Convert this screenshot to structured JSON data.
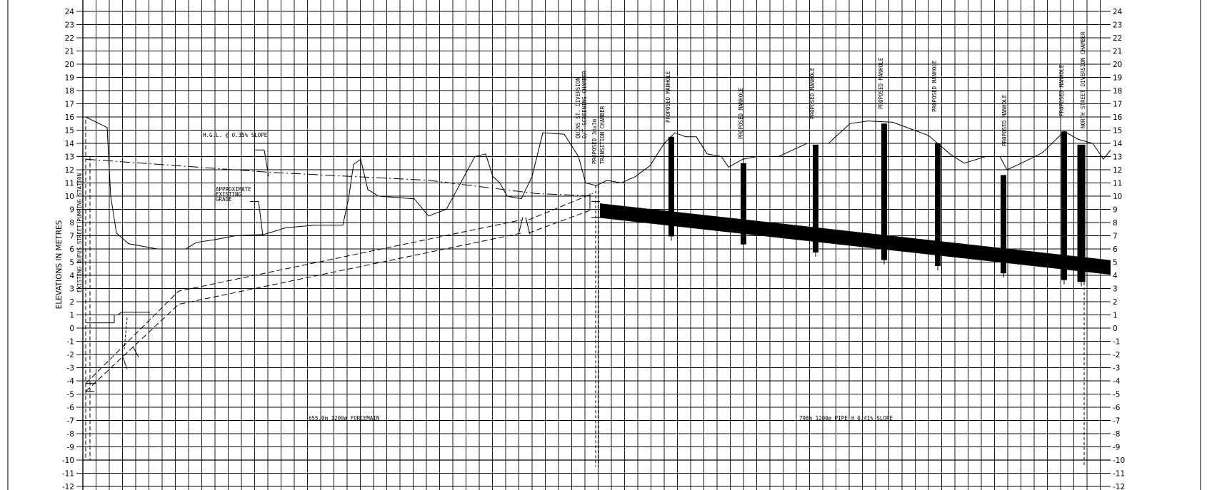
{
  "y_axis": {
    "title": "ELEVATIONS IN METRES",
    "ticks": [
      "24",
      "23",
      "22",
      "21",
      "20",
      "19",
      "18",
      "17",
      "16",
      "15",
      "14",
      "13",
      "12",
      "11",
      "10",
      "9",
      "8",
      "7",
      "6",
      "5",
      "4",
      "3",
      "2",
      "1",
      "0",
      "-1",
      "-2",
      "-3",
      "-4",
      "-5",
      "-6",
      "-7",
      "-8",
      "-9",
      "-10",
      "-11",
      "-12"
    ],
    "right_ticks": [
      "24",
      "23",
      "22",
      "21",
      "20",
      "19",
      "18",
      "17",
      "16",
      "15",
      "14",
      "13",
      "12",
      "11",
      "10",
      "9",
      "8",
      "7",
      "6",
      "5",
      "4",
      "3",
      "2",
      "1",
      "0",
      "-1",
      "-2",
      "-3",
      "-4",
      "-5",
      "-6",
      "-7",
      "-8",
      "-9",
      "-10",
      "-11",
      "-12"
    ]
  },
  "labels": {
    "pumping_station": "EXISTING DUFUS STREET PUMPING STATION",
    "hgl": "H.G.L. @ 0.35% SLOPE",
    "grade_1": "APPROXIMATE",
    "grade_2": "EXISTING",
    "grade_3": "GRADE",
    "diversion_1": "QUINS ST. DIVERSION",
    "diversion_2": "D/T SCREENING CHAMBER",
    "transition_1": "PROPOSED 3mx3m",
    "transition_2": "TRANSITION CHAMBER",
    "manhole_1": "PROPOSED MANHOLE",
    "manhole_2": "PROPOSED MANHOLE",
    "manhole_3": "PROPOSED MANHOLE",
    "manhole_4": "PROPOSED MANHOLE",
    "manhole_5": "PROPOSED MANHOLE",
    "manhole_6": "PROPOSED MANHOLE",
    "manhole_7": "PROPOSED MANHOLE",
    "north_chamber": "NORTH STREET DIVERSION CHAMBER",
    "forcemain": "655.0m 1200ø FORCEMAIN",
    "pipe": "798m 1200ø PIPE @ 0.41% SLOPE"
  },
  "profile": {
    "elevation_min": -12,
    "elevation_max": 24,
    "existing_grade": [
      [
        120,
        16.0
      ],
      [
        150,
        15.2
      ],
      [
        155,
        10
      ],
      [
        163,
        7.2
      ],
      [
        180,
        6.4
      ],
      [
        220,
        6.0
      ],
      [
        260,
        6.0
      ],
      [
        275,
        6.5
      ],
      [
        300,
        6.7
      ],
      [
        330,
        7.0
      ],
      [
        370,
        7.1
      ],
      [
        400,
        7.6
      ],
      [
        440,
        7.8
      ],
      [
        480,
        7.8
      ],
      [
        488,
        9.8
      ],
      [
        495,
        12.4
      ],
      [
        505,
        12.8
      ],
      [
        515,
        10.5
      ],
      [
        530,
        10.0
      ],
      [
        580,
        9.8
      ],
      [
        600,
        8.5
      ],
      [
        625,
        9.0
      ],
      [
        645,
        11.0
      ],
      [
        665,
        13.0
      ],
      [
        680,
        13.2
      ],
      [
        690,
        11.5
      ],
      [
        700,
        11.0
      ],
      [
        710,
        10.0
      ],
      [
        730,
        9.8
      ],
      [
        745,
        11.5
      ],
      [
        760,
        14.8
      ],
      [
        790,
        14.7
      ],
      [
        810,
        13.0
      ],
      [
        820,
        11.0
      ],
      [
        835,
        10.8
      ],
      [
        850,
        11.2
      ],
      [
        870,
        11.0
      ],
      [
        890,
        11.5
      ],
      [
        910,
        12.3
      ],
      [
        930,
        14.0
      ],
      [
        945,
        14.8
      ],
      [
        960,
        14.5
      ],
      [
        975,
        14.5
      ],
      [
        990,
        13.2
      ],
      [
        1010,
        13.0
      ],
      [
        1020,
        12.2
      ],
      [
        1040,
        12.8
      ],
      [
        1060,
        13.0
      ],
      [
        1090,
        13.0
      ],
      [
        1110,
        13.5
      ],
      [
        1130,
        14.0
      ],
      [
        1160,
        14.0
      ],
      [
        1190,
        15.5
      ],
      [
        1215,
        15.7
      ],
      [
        1250,
        15.6
      ],
      [
        1300,
        14.6
      ],
      [
        1330,
        13.2
      ],
      [
        1350,
        12.5
      ],
      [
        1380,
        13.0
      ],
      [
        1400,
        13.0
      ],
      [
        1410,
        12.0
      ],
      [
        1430,
        12.5
      ],
      [
        1460,
        13.3
      ],
      [
        1490,
        14.9
      ],
      [
        1510,
        14.3
      ],
      [
        1530,
        14.0
      ],
      [
        1545,
        12.8
      ],
      [
        1555,
        13.5
      ]
    ],
    "hgl": [
      [
        120,
        12.8
      ],
      [
        380,
        11.8
      ],
      [
        600,
        11.2
      ],
      [
        750,
        10.2
      ],
      [
        835,
        10.0
      ]
    ],
    "forcemain_top": [
      [
        120,
        -4.2
      ],
      [
        250,
        2.8
      ],
      [
        730,
        8.2
      ]
    ],
    "forcemain_bottom": [
      [
        120,
        -4.8
      ],
      [
        250,
        1.8
      ],
      [
        730,
        7.2
      ]
    ],
    "pipe_upstream": [
      840,
      8.9
    ],
    "pipe_downstream": [
      1555,
      4.6
    ],
    "pipe_thickness": 1.1,
    "manholes": [
      {
        "x": 940,
        "top": 14.5
      },
      {
        "x": 1041,
        "top": 12.5
      },
      {
        "x": 1142,
        "top": 13.9
      },
      {
        "x": 1238,
        "top": 15.5
      },
      {
        "x": 1313,
        "top": 14.0
      },
      {
        "x": 1405,
        "top": 11.6
      },
      {
        "x": 1490,
        "top": 14.9
      },
      {
        "x": 1514,
        "top": 13.9
      }
    ]
  }
}
